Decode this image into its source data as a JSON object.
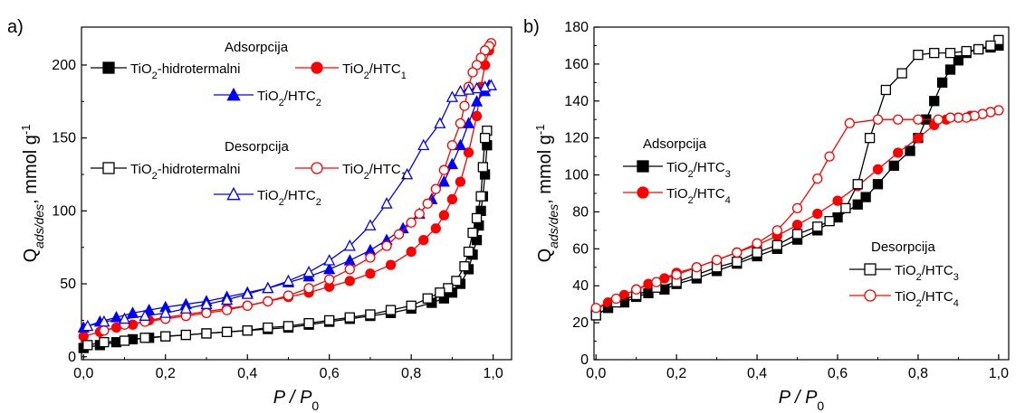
{
  "chart_data": [
    {
      "type": "scatter",
      "panel_label": "a)",
      "xlabel": "P / P0",
      "ylabel": "Q ads/des, mmol g-1",
      "xlim": [
        0.0,
        1.0
      ],
      "ylim": [
        0,
        220
      ],
      "xticks": [
        "0,0",
        "0,2",
        "0,4",
        "0,6",
        "0,8",
        "1,0"
      ],
      "yticks": [
        "0",
        "50",
        "100",
        "150",
        "200"
      ],
      "legend_headers": [
        "Adsorpcija",
        "Desorpcija"
      ],
      "series": [
        {
          "name": "TiO2-hidrotermalni",
          "group": "Adsorpcija",
          "color": "#000000",
          "marker": "square",
          "filled": true,
          "x": [
            0.0,
            0.04,
            0.08,
            0.12,
            0.16,
            0.2,
            0.25,
            0.3,
            0.35,
            0.4,
            0.45,
            0.5,
            0.55,
            0.6,
            0.65,
            0.7,
            0.75,
            0.8,
            0.85,
            0.88,
            0.9,
            0.92,
            0.94,
            0.95,
            0.96,
            0.965,
            0.97,
            0.975,
            0.98,
            0.985
          ],
          "y": [
            6,
            8,
            10,
            12,
            13,
            14,
            15,
            16,
            17,
            18,
            19,
            20,
            22,
            24,
            26,
            28,
            30,
            33,
            37,
            40,
            44,
            50,
            60,
            70,
            80,
            90,
            100,
            110,
            125,
            145
          ]
        },
        {
          "name": "TiO2/HTC1",
          "group": "Adsorpcija",
          "color": "#ff0000",
          "marker": "circle",
          "filled": true,
          "x": [
            0.0,
            0.04,
            0.08,
            0.12,
            0.16,
            0.2,
            0.25,
            0.3,
            0.35,
            0.4,
            0.45,
            0.5,
            0.55,
            0.6,
            0.65,
            0.7,
            0.75,
            0.8,
            0.83,
            0.86,
            0.88,
            0.9,
            0.92,
            0.94,
            0.96,
            0.97,
            0.98,
            0.99
          ],
          "y": [
            14,
            17,
            20,
            22,
            25,
            27,
            29,
            31,
            33,
            35,
            38,
            41,
            44,
            48,
            52,
            57,
            63,
            72,
            80,
            88,
            97,
            108,
            120,
            140,
            165,
            185,
            200,
            210
          ]
        },
        {
          "name": "TiO2/HTC2",
          "group": "Adsorpcija",
          "color": "#0000ff",
          "marker": "triangle",
          "filled": true,
          "x": [
            0.0,
            0.04,
            0.08,
            0.12,
            0.16,
            0.2,
            0.25,
            0.3,
            0.35,
            0.4,
            0.45,
            0.5,
            0.55,
            0.6,
            0.65,
            0.7,
            0.74,
            0.78,
            0.82,
            0.85,
            0.88,
            0.9,
            0.92,
            0.94,
            0.96,
            0.98,
            0.99
          ],
          "y": [
            20,
            24,
            27,
            30,
            32,
            34,
            36,
            38,
            41,
            44,
            47,
            51,
            55,
            60,
            66,
            73,
            80,
            88,
            98,
            108,
            120,
            132,
            145,
            160,
            175,
            182,
            186
          ]
        },
        {
          "name": "TiO2-hidrotermalni",
          "group": "Desorpcija",
          "color": "#000000",
          "marker": "square",
          "filled": false,
          "x": [
            0.985,
            0.98,
            0.975,
            0.97,
            0.96,
            0.95,
            0.94,
            0.93,
            0.91,
            0.89,
            0.87,
            0.84,
            0.8,
            0.75,
            0.7,
            0.65,
            0.6,
            0.55,
            0.5,
            0.45,
            0.4,
            0.35,
            0.3,
            0.25,
            0.2,
            0.15,
            0.1,
            0.05,
            0.01
          ],
          "y": [
            155,
            150,
            130,
            110,
            95,
            85,
            72,
            62,
            52,
            47,
            44,
            40,
            35,
            32,
            29,
            27,
            25,
            23,
            21,
            20,
            18,
            17,
            16,
            15,
            14,
            13,
            11,
            10,
            8
          ]
        },
        {
          "name": "TiO2/HTC1",
          "group": "Desorpcija",
          "color": "#ff0000",
          "marker": "circle",
          "filled": false,
          "x": [
            0.995,
            0.99,
            0.98,
            0.97,
            0.96,
            0.95,
            0.94,
            0.93,
            0.92,
            0.9,
            0.88,
            0.86,
            0.84,
            0.82,
            0.8,
            0.77,
            0.74,
            0.7,
            0.65,
            0.6,
            0.55,
            0.5,
            0.45,
            0.4,
            0.35,
            0.3,
            0.25,
            0.2,
            0.15,
            0.1,
            0.05
          ],
          "y": [
            215,
            213,
            210,
            205,
            200,
            195,
            185,
            172,
            160,
            145,
            128,
            115,
            105,
            98,
            92,
            84,
            76,
            68,
            60,
            53,
            47,
            42,
            38,
            35,
            32,
            30,
            28,
            26,
            24,
            22,
            18
          ]
        },
        {
          "name": "TiO2/HTC2",
          "group": "Desorpcija",
          "color": "#0000ff",
          "marker": "triangle",
          "filled": false,
          "x": [
            0.995,
            0.98,
            0.96,
            0.94,
            0.92,
            0.9,
            0.87,
            0.83,
            0.79,
            0.74,
            0.7,
            0.65,
            0.6,
            0.55,
            0.5,
            0.45,
            0.4,
            0.35,
            0.3,
            0.25,
            0.2,
            0.15,
            0.1,
            0.05,
            0.01
          ],
          "y": [
            186,
            185,
            184,
            183,
            182,
            178,
            160,
            145,
            125,
            105,
            90,
            76,
            66,
            58,
            52,
            47,
            43,
            39,
            36,
            33,
            30,
            28,
            26,
            24,
            21
          ]
        }
      ]
    },
    {
      "type": "scatter",
      "panel_label": "b)",
      "xlabel": "P / P0",
      "ylabel": "Q ads/des, mmol g-1",
      "xlim": [
        0.0,
        1.0
      ],
      "ylim": [
        0,
        180
      ],
      "xticks": [
        "0,0",
        "0,2",
        "0,4",
        "0,6",
        "0,8",
        "1,0"
      ],
      "yticks": [
        "0",
        "20",
        "40",
        "60",
        "80",
        "100",
        "120",
        "140",
        "160",
        "180"
      ],
      "legend_headers": [
        "Adsorpcija",
        "Desorpcija"
      ],
      "series": [
        {
          "name": "TiO2/HTC3",
          "group": "Adsorpcija",
          "color": "#000000",
          "marker": "square",
          "filled": true,
          "x": [
            0.0,
            0.03,
            0.07,
            0.1,
            0.13,
            0.17,
            0.2,
            0.25,
            0.3,
            0.35,
            0.4,
            0.45,
            0.5,
            0.55,
            0.6,
            0.65,
            0.67,
            0.7,
            0.74,
            0.78,
            0.8,
            0.82,
            0.84,
            0.86,
            0.88,
            0.9,
            0.92,
            0.95,
            0.98,
            1.0
          ],
          "y": [
            24,
            28,
            31,
            34,
            36,
            38,
            41,
            44,
            48,
            52,
            56,
            60,
            65,
            70,
            77,
            84,
            88,
            95,
            105,
            113,
            120,
            130,
            140,
            150,
            157,
            162,
            166,
            168,
            169,
            170
          ]
        },
        {
          "name": "TiO2/HTC4",
          "group": "Adsorpcija",
          "color": "#ff0000",
          "marker": "circle",
          "filled": true,
          "x": [
            0.0,
            0.03,
            0.07,
            0.1,
            0.13,
            0.17,
            0.2,
            0.25,
            0.3,
            0.35,
            0.4,
            0.45,
            0.5,
            0.55,
            0.6,
            0.65,
            0.7,
            0.75,
            0.8,
            0.84,
            0.87,
            0.9,
            0.93,
            0.96,
            0.98,
            1.0
          ],
          "y": [
            27,
            31,
            35,
            38,
            41,
            44,
            47,
            50,
            54,
            58,
            62,
            67,
            73,
            79,
            86,
            94,
            103,
            112,
            120,
            127,
            130,
            131,
            132,
            133,
            134,
            135
          ]
        },
        {
          "name": "TiO2/HTC3",
          "group": "Desorpcija",
          "color": "#000000",
          "marker": "square",
          "filled": false,
          "x": [
            1.0,
            0.98,
            0.95,
            0.92,
            0.88,
            0.84,
            0.8,
            0.76,
            0.72,
            0.68,
            0.65,
            0.62,
            0.58,
            0.55,
            0.5,
            0.45,
            0.4,
            0.35,
            0.3,
            0.25,
            0.2,
            0.15,
            0.1,
            0.05,
            0.0
          ],
          "y": [
            173,
            170,
            168,
            167,
            166,
            166,
            165,
            155,
            146,
            120,
            95,
            82,
            75,
            72,
            68,
            62,
            58,
            53,
            50,
            46,
            42,
            39,
            35,
            31,
            24
          ]
        },
        {
          "name": "TiO2/HTC4",
          "group": "Desorpcija",
          "color": "#ff0000",
          "marker": "circle",
          "filled": false,
          "x": [
            1.0,
            0.98,
            0.96,
            0.94,
            0.92,
            0.9,
            0.88,
            0.85,
            0.8,
            0.75,
            0.7,
            0.63,
            0.58,
            0.55,
            0.5,
            0.45,
            0.4,
            0.35,
            0.3,
            0.25,
            0.2,
            0.15,
            0.1,
            0.05,
            0.0
          ],
          "y": [
            135,
            134,
            133,
            132,
            131,
            131,
            131,
            130,
            130,
            130,
            130,
            128,
            110,
            98,
            82,
            70,
            63,
            58,
            54,
            50,
            46,
            42,
            38,
            33,
            28
          ]
        }
      ]
    }
  ]
}
